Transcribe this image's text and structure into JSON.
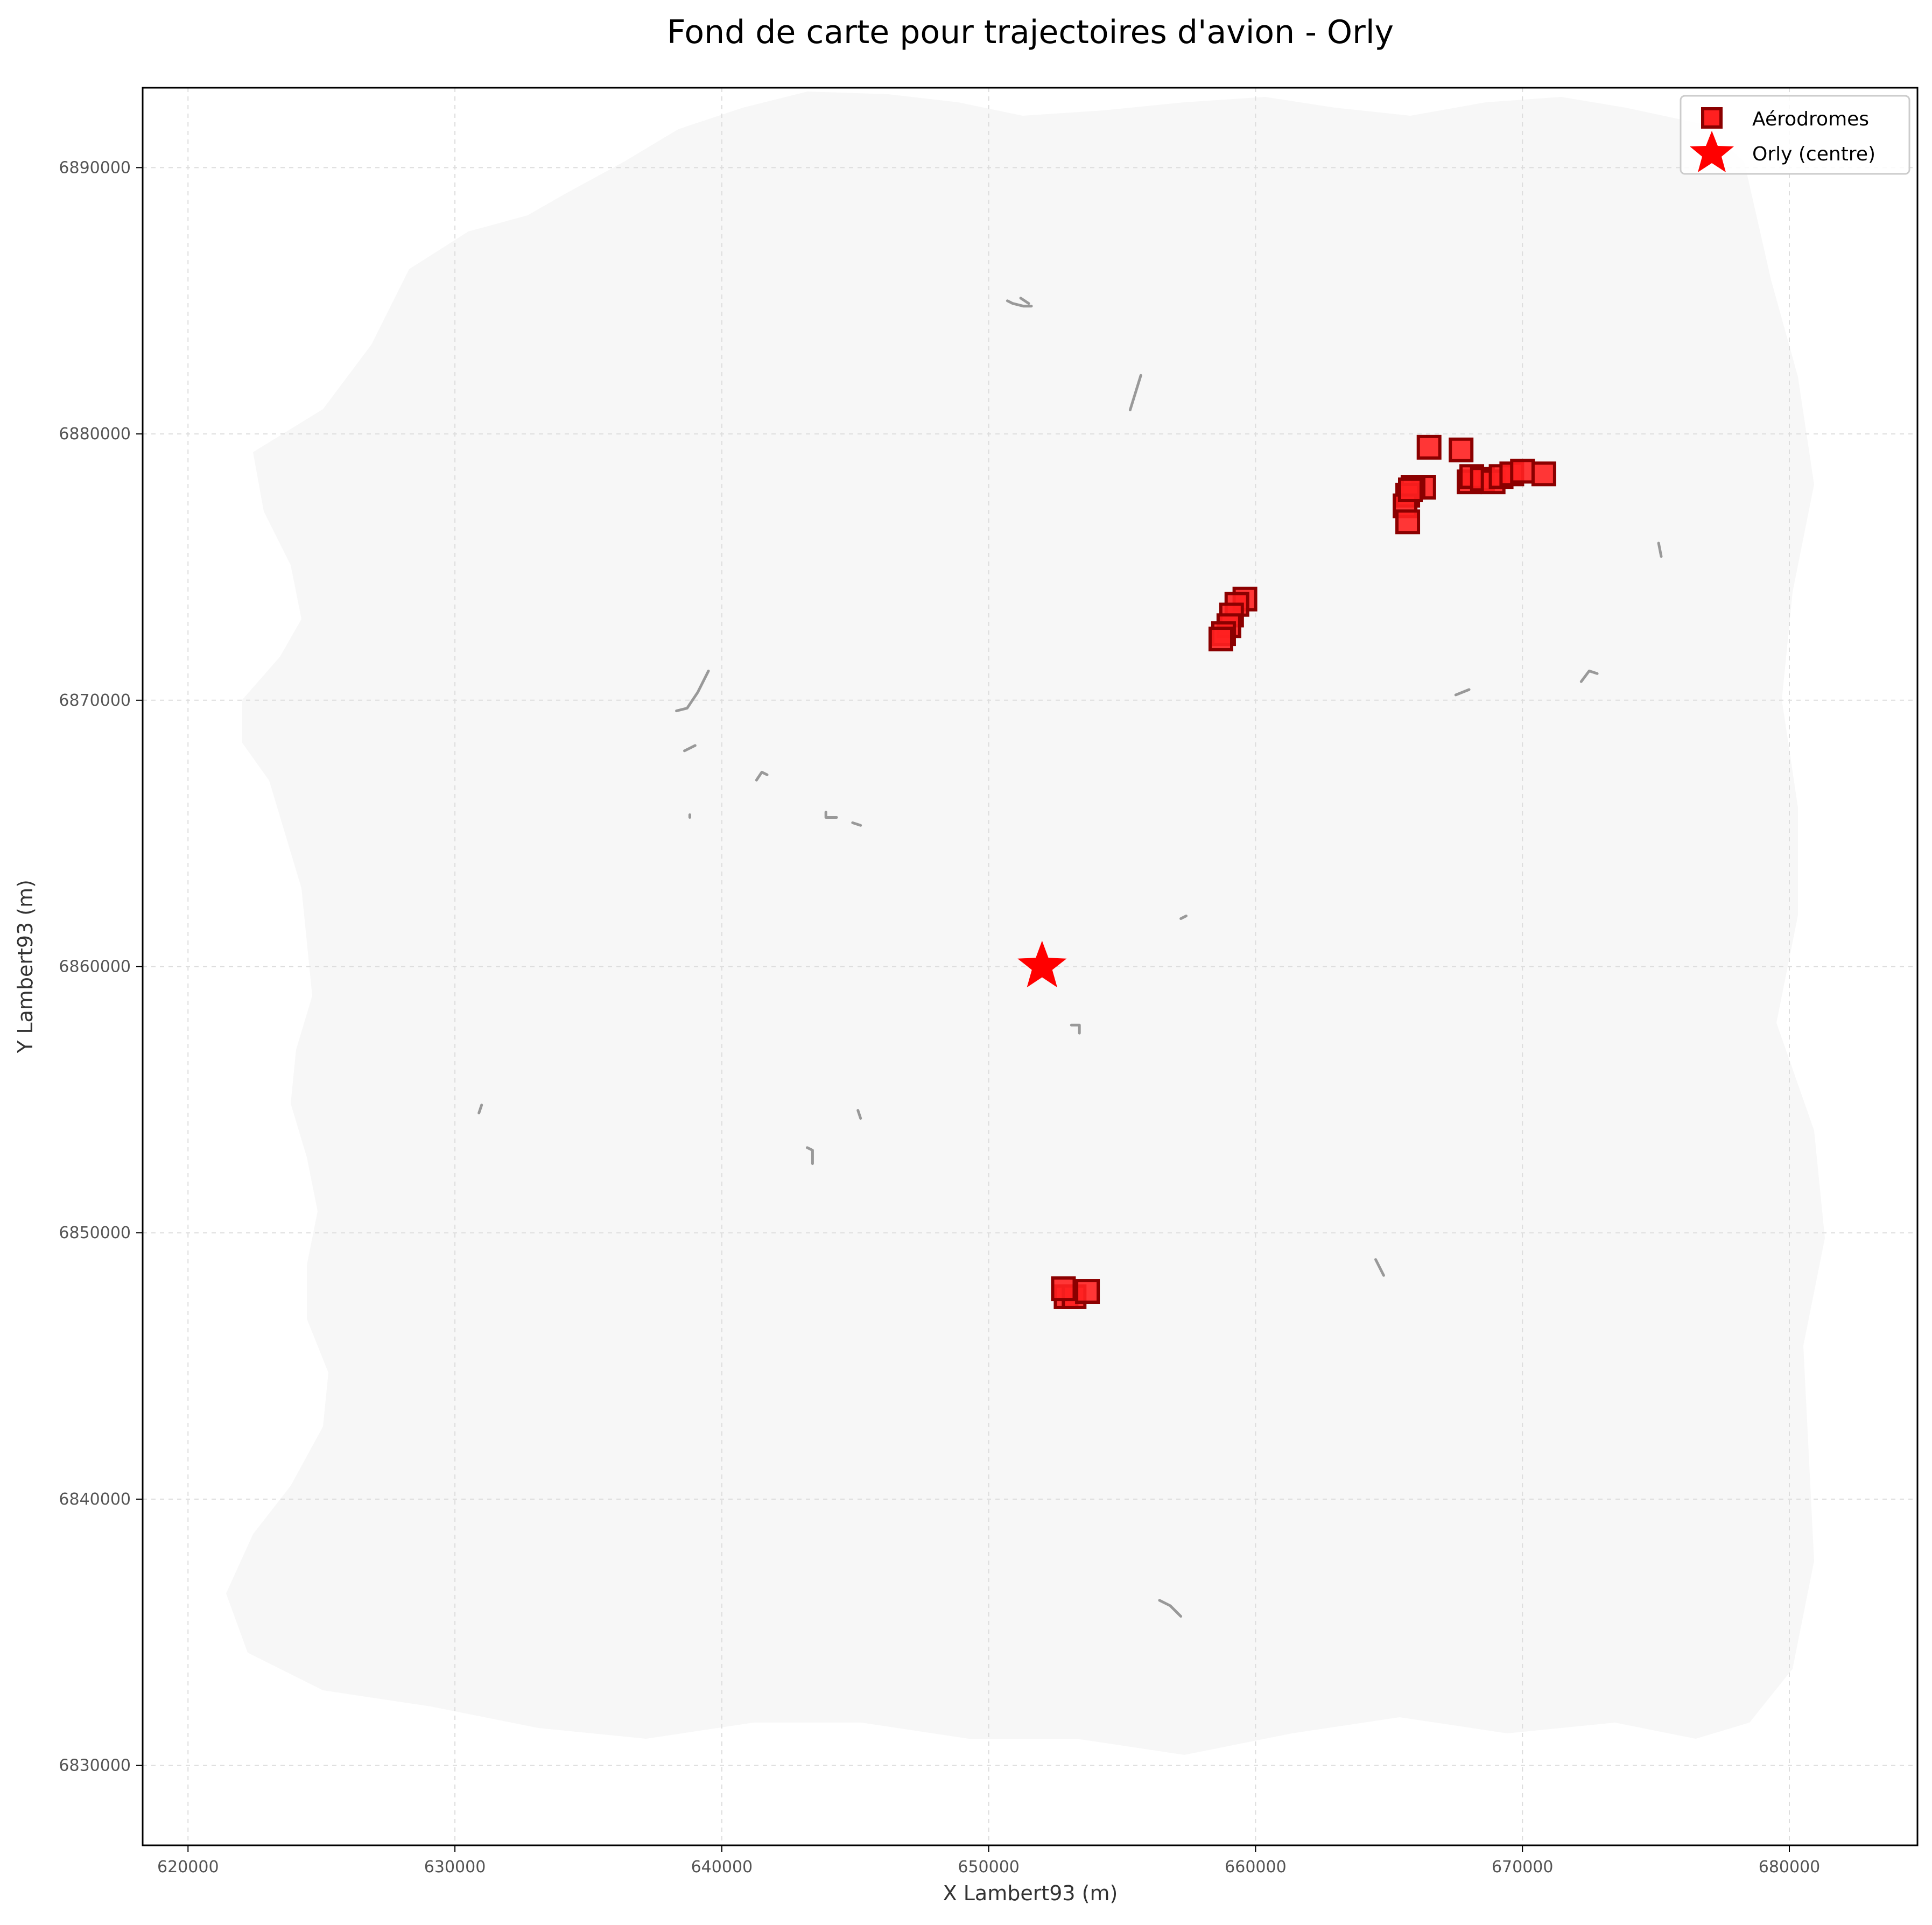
{
  "chart_data": {
    "type": "scatter",
    "title": "Fond de carte pour trajectoires d'avion - Orly",
    "xlabel": "X Lambert93 (m)",
    "ylabel": "Y Lambert93 (m)",
    "xlim": [
      618300,
      684800
    ],
    "ylim": [
      6827000,
      6893000
    ],
    "x_ticks": [
      620000,
      630000,
      640000,
      650000,
      660000,
      670000,
      680000
    ],
    "y_ticks": [
      6830000,
      6840000,
      6850000,
      6860000,
      6870000,
      6880000,
      6890000
    ],
    "grid": true,
    "legend_position": "top-right",
    "colors": {
      "background_map": "#f7f7f7",
      "lines": "#999999",
      "aerodrome_fill": "#ff2020",
      "aerodrome_edge": "#8b0000",
      "orly": "#ff0000",
      "grid": "#dddddd"
    },
    "series": [
      {
        "name": "Aérodromes",
        "marker": "square",
        "points": [
          {
            "x": 666500,
            "y": 6879500
          },
          {
            "x": 667700,
            "y": 6879400
          },
          {
            "x": 666300,
            "y": 6878000
          },
          {
            "x": 665900,
            "y": 6878000
          },
          {
            "x": 665700,
            "y": 6877700
          },
          {
            "x": 665600,
            "y": 6877300
          },
          {
            "x": 665700,
            "y": 6876700
          },
          {
            "x": 665800,
            "y": 6877900
          },
          {
            "x": 668000,
            "y": 6878200
          },
          {
            "x": 668100,
            "y": 6878400
          },
          {
            "x": 668500,
            "y": 6878300
          },
          {
            "x": 668900,
            "y": 6878200
          },
          {
            "x": 669200,
            "y": 6878400
          },
          {
            "x": 669600,
            "y": 6878500
          },
          {
            "x": 670000,
            "y": 6878600
          },
          {
            "x": 670800,
            "y": 6878500
          },
          {
            "x": 659600,
            "y": 6873800
          },
          {
            "x": 659300,
            "y": 6873600
          },
          {
            "x": 659100,
            "y": 6873200
          },
          {
            "x": 659000,
            "y": 6872800
          },
          {
            "x": 658800,
            "y": 6872500
          },
          {
            "x": 658700,
            "y": 6872300
          },
          {
            "x": 652900,
            "y": 6847600
          },
          {
            "x": 653200,
            "y": 6847600
          },
          {
            "x": 653700,
            "y": 6847800
          },
          {
            "x": 652800,
            "y": 6847900
          }
        ]
      },
      {
        "name": "Orly (centre)",
        "marker": "star",
        "points": [
          {
            "x": 652000,
            "y": 6860000
          }
        ]
      }
    ],
    "line_segments": [
      [
        [
          650700,
          6885000
        ],
        [
          650900,
          6884900
        ],
        [
          651300,
          6884800
        ],
        [
          651600,
          6884800
        ]
      ],
      [
        [
          651200,
          6885100
        ],
        [
          651500,
          6884900
        ]
      ],
      [
        [
          655300,
          6880900
        ],
        [
          655700,
          6882200
        ]
      ],
      [
        [
          638300,
          6869600
        ],
        [
          638700,
          6869700
        ],
        [
          639100,
          6870300
        ],
        [
          639500,
          6871100
        ]
      ],
      [
        [
          638600,
          6868100
        ],
        [
          639000,
          6868300
        ]
      ],
      [
        [
          641300,
          6867000
        ],
        [
          641500,
          6867300
        ],
        [
          641700,
          6867200
        ]
      ],
      [
        [
          638800,
          6865600
        ],
        [
          638800,
          6865700
        ]
      ],
      [
        [
          643900,
          6865800
        ],
        [
          643900,
          6865600
        ],
        [
          644300,
          6865600
        ]
      ],
      [
        [
          644900,
          6865400
        ],
        [
          645200,
          6865300
        ]
      ],
      [
        [
          657200,
          6861800
        ],
        [
          657400,
          6861900
        ]
      ],
      [
        [
          653100,
          6857800
        ],
        [
          653400,
          6857800
        ],
        [
          653400,
          6857500
        ]
      ],
      [
        [
          630900,
          6854500
        ],
        [
          631000,
          6854800
        ]
      ],
      [
        [
          645100,
          6854600
        ],
        [
          645200,
          6854300
        ]
      ],
      [
        [
          643200,
          6853200
        ],
        [
          643400,
          6853100
        ],
        [
          643400,
          6852600
        ]
      ],
      [
        [
          667500,
          6870200
        ],
        [
          668000,
          6870400
        ]
      ],
      [
        [
          672200,
          6870700
        ],
        [
          672500,
          6871100
        ],
        [
          672800,
          6871000
        ]
      ],
      [
        [
          675100,
          6875900
        ],
        [
          675200,
          6875400
        ]
      ],
      [
        [
          664500,
          6849000
        ],
        [
          664800,
          6848400
        ]
      ],
      [
        [
          656400,
          6836200
        ],
        [
          656800,
          6836000
        ],
        [
          657000,
          6835800
        ],
        [
          657200,
          6835600
        ]
      ]
    ]
  }
}
